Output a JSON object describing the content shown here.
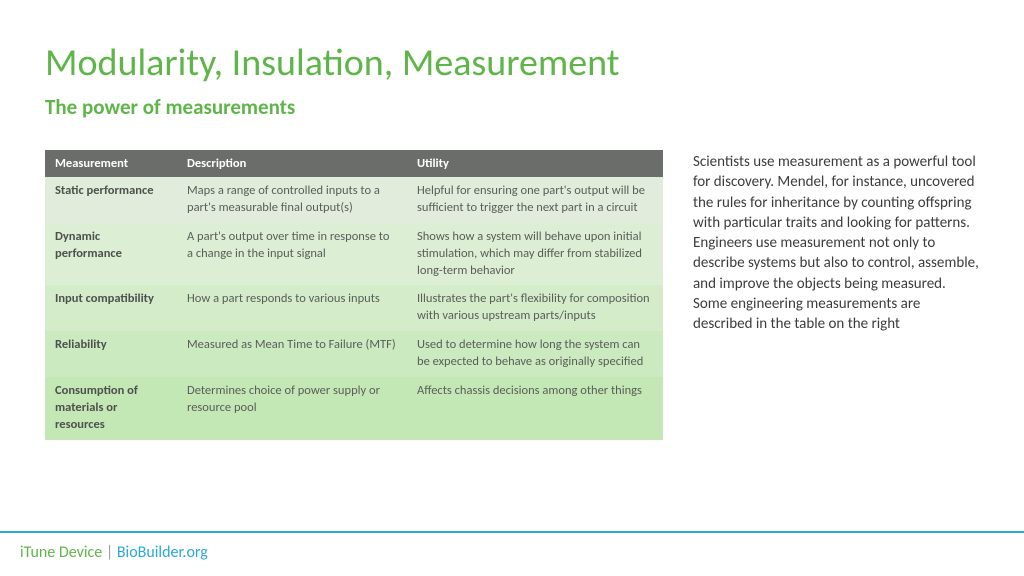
{
  "title": "Modularity, Insulation, Measurement",
  "subtitle": "The power of measurements",
  "table": {
    "columns": [
      "Measurement",
      "Description",
      "Utility"
    ],
    "rows": [
      [
        "Static performance",
        "Maps a range of controlled inputs to a part's measurable final output(s)",
        "Helpful for ensuring one part's output will be sufficient to trigger the next part in a circuit"
      ],
      [
        "Dynamic performance",
        "A part's output over time in response to a change in the input signal",
        "Shows how a system will behave upon initial stimulation, which may differ from stabilized long-term behavior"
      ],
      [
        "Input compatibility",
        "How a part responds to various inputs",
        "Illustrates the part's flexibility for composition with various upstream parts/inputs"
      ],
      [
        "Reliability",
        "Measured as Mean Time to Failure (MTF)",
        "Used to determine how long the system can be expected to behave as originally specified"
      ],
      [
        "Consumption of materials or resources",
        "Determines choice of power supply or resource pool",
        "Affects chassis decisions among other things"
      ]
    ]
  },
  "body_text": "Scientists use measurement as a powerful tool for discovery. Mendel, for instance, uncovered the rules for inheritance by counting offspring with particular traits and looking for patterns. Engineers use measurement not only to describe systems but also to control, assemble, and improve the objects being measured. Some engineering measurements are described in the table on the right",
  "footer": {
    "left": "iTune Device",
    "separator": " | ",
    "right": "BioBuilder.org"
  }
}
